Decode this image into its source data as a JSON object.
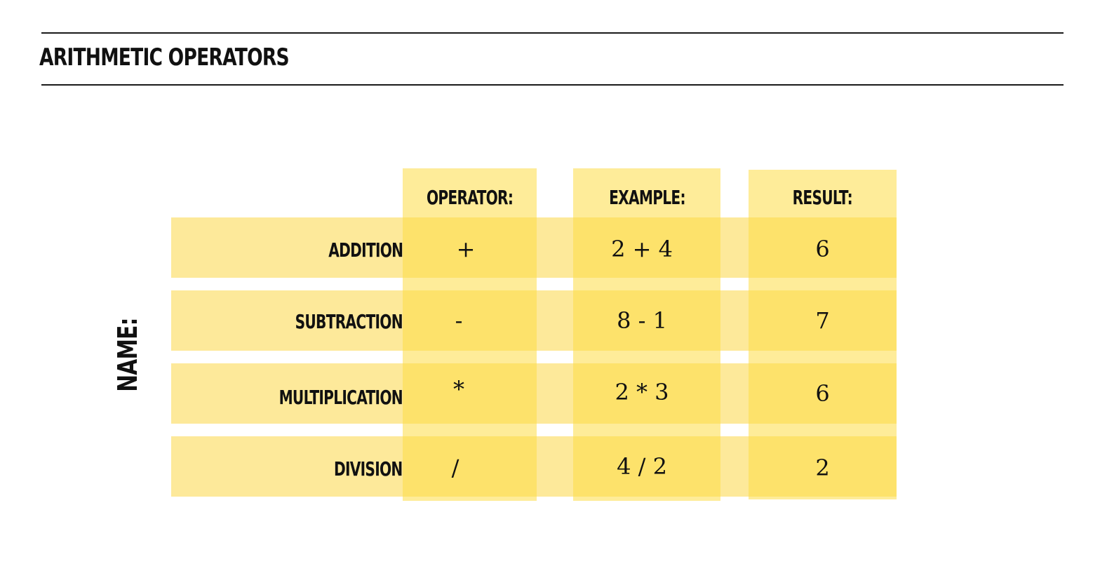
{
  "page": {
    "title": "ARITHMETIC OPERATORS",
    "side_label": "NAME:"
  },
  "table": {
    "headers": {
      "operator": "OPERATOR:",
      "example": "EXAMPLE:",
      "result": "RESULT:"
    },
    "rows": [
      {
        "name": "ADDITION",
        "operator": "+",
        "example": "2 + 4",
        "result": "6"
      },
      {
        "name": "SUBTRACTION",
        "operator": "-",
        "example": "8 - 1",
        "result": "7"
      },
      {
        "name": "MULTIPLICATION",
        "operator": "*",
        "example": "2 * 3",
        "result": "6"
      },
      {
        "name": "DIVISION",
        "operator": "/",
        "example": "4 / 2",
        "result": "2"
      }
    ]
  },
  "colors": {
    "row_band": "#fde99a",
    "column_band": "#fddd46",
    "text": "#111111"
  }
}
